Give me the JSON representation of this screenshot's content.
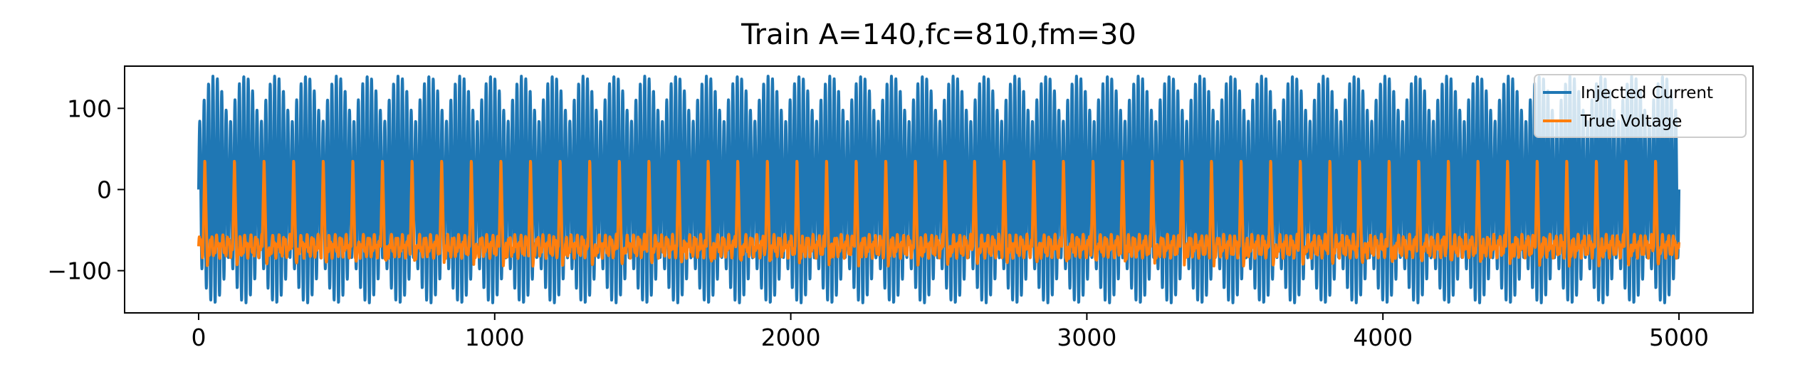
{
  "chart_data": {
    "type": "line",
    "title": "Train A=140,fc=810,fm=30",
    "xlabel": "",
    "ylabel": "",
    "xlim": [
      -250,
      5250
    ],
    "ylim": [
      -152,
      152
    ],
    "xticks": [
      0,
      1000,
      2000,
      3000,
      4000,
      5000
    ],
    "xtick_labels": [
      "0",
      "1000",
      "2000",
      "3000",
      "4000",
      "5000"
    ],
    "yticks": [
      -100,
      0,
      100
    ],
    "ytick_labels": [
      "−100",
      "0",
      "100"
    ],
    "grid": false,
    "legend": {
      "position": "upper right"
    },
    "series": [
      {
        "name": "Injected Current",
        "color": "#1f77b4",
        "description_values": {
          "amplitude": 140,
          "carrier_frequency": 810,
          "modulation_frequency": 30,
          "x_range": [
            0,
            5000
          ],
          "y_range": [
            -140,
            140
          ]
        }
      },
      {
        "name": "True Voltage",
        "color": "#ff7f0e",
        "description_values": {
          "baseline": -70,
          "spike_peak": 40,
          "spike_count": 50,
          "x_range": [
            0,
            5000
          ],
          "y_range": [
            -95,
            40
          ]
        }
      }
    ]
  }
}
